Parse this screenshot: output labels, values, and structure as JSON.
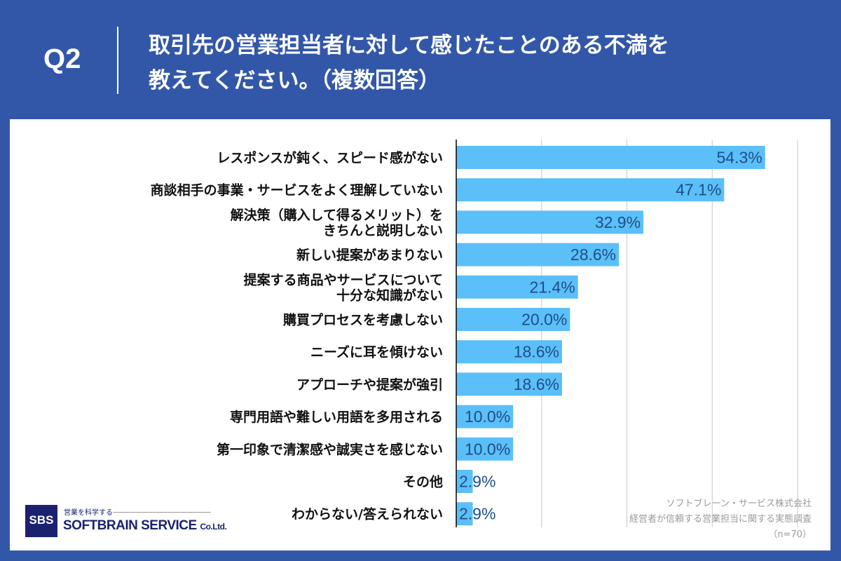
{
  "header": {
    "q": "Q2",
    "title_line1": "取引先の営業担当者に対して感じたことのある不満を",
    "title_line2": "教えてください。（複数回答）"
  },
  "colors": {
    "background": "#3357a8",
    "bar": "#5bbff9",
    "label": "#1f4e86"
  },
  "chart_data": {
    "type": "bar",
    "orientation": "horizontal",
    "xlim": [
      0,
      60
    ],
    "grid": true,
    "categories": [
      [
        "レスポンスが鈍く、スピード感がない"
      ],
      [
        "商談相手の事業・サービスをよく理解していない"
      ],
      [
        "解決策（購入して得るメリット）を",
        "きちんと説明しない"
      ],
      [
        "新しい提案があまりない"
      ],
      [
        "提案する商品やサービスについて",
        "十分な知識がない"
      ],
      [
        "購買プロセスを考慮しない"
      ],
      [
        "ニーズに耳を傾けない"
      ],
      [
        "アプローチや提案が強引"
      ],
      [
        "専門用語や難しい用語を多用される"
      ],
      [
        "第一印象で清潔感や誠実さを感じない"
      ],
      [
        "その他"
      ],
      [
        "わからない/答えられない"
      ]
    ],
    "values": [
      54.3,
      47.1,
      32.9,
      28.6,
      21.4,
      20.0,
      18.6,
      18.6,
      10.0,
      10.0,
      2.9,
      2.9
    ],
    "value_labels": [
      "54.3%",
      "47.1%",
      "32.9%",
      "28.6%",
      "21.4%",
      "20.0%",
      "18.6%",
      "18.6%",
      "10.0%",
      "10.0%",
      "2.9%",
      "2.9%"
    ]
  },
  "logo": {
    "box": "SBS",
    "tagline": "営業を科学する",
    "name": "SOFTBRAIN SERVICE",
    "suffix": "Co.Ltd."
  },
  "note": {
    "line1": "ソフトブレーン・サービス株式会社",
    "line2": "経営者が信頼する営業担当に関する実態調査",
    "line3": "（n=70）"
  }
}
